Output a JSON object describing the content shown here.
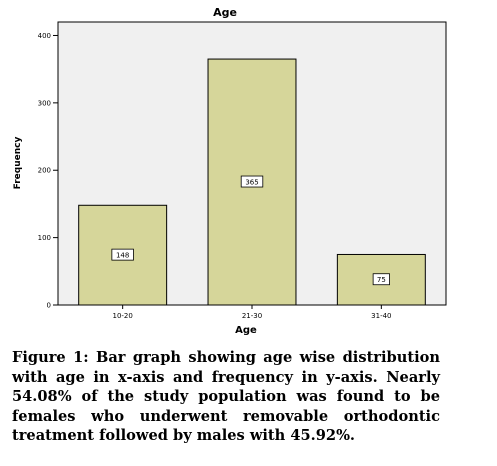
{
  "chart_data": {
    "type": "bar",
    "title": "Age",
    "xlabel": "Age",
    "ylabel": "Frequency",
    "categories": [
      "10-20",
      "21-30",
      "31-40"
    ],
    "values": [
      148,
      365,
      75
    ],
    "data_labels": [
      "148",
      "365",
      "75"
    ],
    "ylim": [
      0,
      420
    ],
    "yticks": [
      0,
      100,
      200,
      300,
      400
    ],
    "grid": false,
    "colors": {
      "plot_bg": "#f0f0f0",
      "bar_fill": "#d6d69a",
      "bar_stroke": "#000000"
    }
  },
  "caption": "Figure 1: Bar graph showing age wise distribution with age in x-axis and frequency in y-axis. Nearly 54.08% of the study population was found to be females who underwent removable orthodontic treatment followed by males with 45.92%."
}
